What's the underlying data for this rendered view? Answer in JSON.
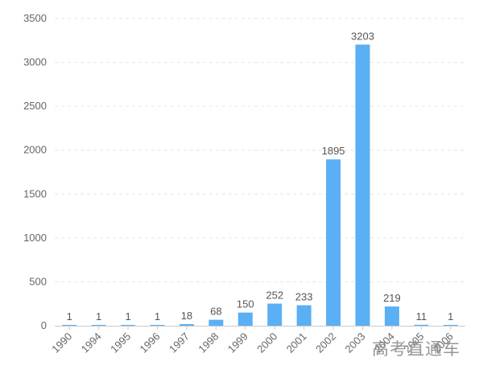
{
  "chart_data": {
    "type": "bar",
    "categories": [
      "1990",
      "1994",
      "1995",
      "1996",
      "1997",
      "1998",
      "1999",
      "2000",
      "2001",
      "2002",
      "2003",
      "2004",
      "2005",
      "2006"
    ],
    "values": [
      1,
      1,
      1,
      1,
      18,
      68,
      150,
      252,
      233,
      1895,
      3203,
      219,
      11,
      1
    ],
    "ylim": [
      0,
      3500
    ],
    "yticks": [
      0,
      500,
      1000,
      1500,
      2000,
      2500,
      3000,
      3500
    ],
    "grid": true,
    "data_labels": true,
    "bar_color": "#5aaff5"
  },
  "watermark": "高考直通车"
}
